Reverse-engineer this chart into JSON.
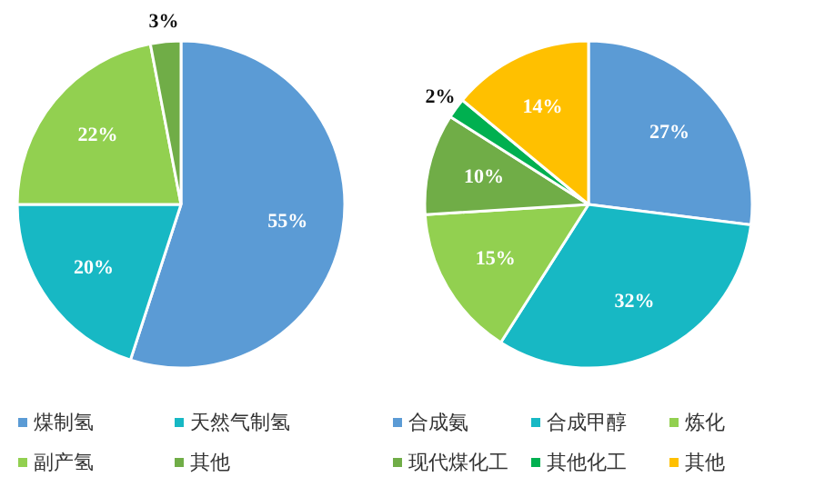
{
  "chart_data": [
    {
      "type": "pie",
      "categories": [
        "煤制氢",
        "天然气制氢",
        "副产氢",
        "其他"
      ],
      "values": [
        55,
        20,
        22,
        3
      ],
      "value_labels": [
        "55%",
        "20%",
        "22%",
        "3%"
      ],
      "colors": [
        "#5b9bd5",
        "#17b8c4",
        "#92d050",
        "#70ad47"
      ],
      "legend": "bottom"
    },
    {
      "type": "pie",
      "categories": [
        "合成氨",
        "合成甲醇",
        "炼化",
        "现代煤化工",
        "其他化工",
        "其他"
      ],
      "values": [
        27,
        32,
        15,
        10,
        2,
        14
      ],
      "value_labels": [
        "27%",
        "32%",
        "15%",
        "10%",
        "2%",
        "14%"
      ],
      "colors": [
        "#5b9bd5",
        "#17b8c4",
        "#92d050",
        "#70ad47",
        "#00b050",
        "#ffc000"
      ],
      "legend": "bottom"
    }
  ]
}
